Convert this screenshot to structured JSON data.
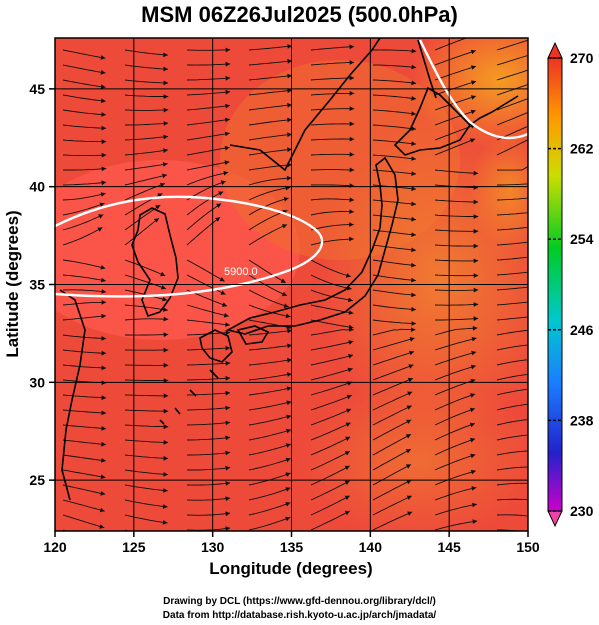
{
  "title": "MSM 06Z26Jul2025 (500.0hPa)",
  "credits": {
    "line1": "Drawing by DCL (https://www.gfd-dennou.org/library/dcl/)",
    "line2": "Data from http://database.rish.kyoto-u.ac.jp/arch/jmadata/"
  },
  "map": {
    "lon_range": [
      120,
      150
    ],
    "lat_range": [
      22.4,
      47.6
    ],
    "xlabel": "Longitude (degrees)",
    "ylabel": "Latitude  (degrees)",
    "x_ticks": [
      "120",
      "125",
      "130",
      "135",
      "140",
      "145",
      "150"
    ],
    "y_ticks": [
      "25",
      "30",
      "35",
      "40",
      "45"
    ],
    "contour_label": "5900.0",
    "colorbar": {
      "min": 230,
      "max": 270,
      "tick_labels": [
        "270",
        "262",
        "254",
        "246",
        "238",
        "230"
      ]
    }
  }
}
